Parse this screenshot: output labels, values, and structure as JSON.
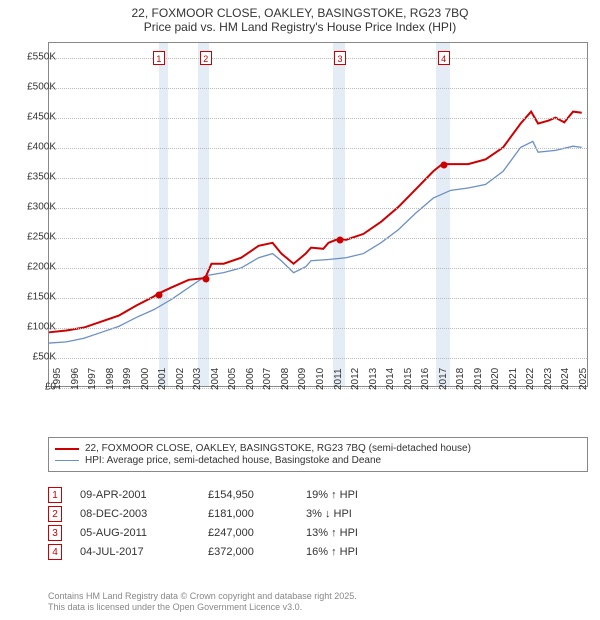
{
  "title": {
    "line1": "22, FOXMOOR CLOSE, OAKLEY, BASINGSTOKE, RG23 7BQ",
    "line2": "Price paid vs. HM Land Registry's House Price Index (HPI)"
  },
  "chart": {
    "type": "line",
    "background_color": "#ffffff",
    "grid_color": "#bbbbbb",
    "band_color": "#e4edf6",
    "border_color": "#888888",
    "x": {
      "min": 1995,
      "max": 2025.8,
      "ticks": [
        1995,
        1996,
        1997,
        1998,
        1999,
        2000,
        2001,
        2002,
        2003,
        2004,
        2005,
        2006,
        2007,
        2008,
        2009,
        2010,
        2011,
        2012,
        2013,
        2014,
        2015,
        2016,
        2017,
        2018,
        2019,
        2020,
        2021,
        2022,
        2023,
        2024,
        2025
      ]
    },
    "y": {
      "min": 0,
      "max": 575000,
      "ticks": [
        0,
        50000,
        100000,
        150000,
        200000,
        250000,
        300000,
        350000,
        400000,
        450000,
        500000,
        550000
      ],
      "labels": [
        "£0",
        "£50K",
        "£100K",
        "£150K",
        "£200K",
        "£250K",
        "£300K",
        "£350K",
        "£400K",
        "£450K",
        "£500K",
        "£550K"
      ]
    },
    "bands": [
      {
        "start": 2001.27,
        "end": 2001.8
      },
      {
        "start": 2003.5,
        "end": 2004.1
      },
      {
        "start": 2011.2,
        "end": 2011.9
      },
      {
        "start": 2017.1,
        "end": 2017.9
      }
    ],
    "series": [
      {
        "name": "price_paid",
        "label": "22, FOXMOOR CLOSE, OAKLEY, BASINGSTOKE, RG23 7BQ (semi-detached house)",
        "color": "#cc0000",
        "width": 2,
        "data": [
          [
            1995,
            90000
          ],
          [
            1996,
            93000
          ],
          [
            1997,
            98000
          ],
          [
            1998,
            108000
          ],
          [
            1999,
            118000
          ],
          [
            2000,
            135000
          ],
          [
            2001,
            150000
          ],
          [
            2001.27,
            154950
          ],
          [
            2002,
            165000
          ],
          [
            2003,
            178000
          ],
          [
            2003.94,
            181000
          ],
          [
            2004.3,
            205000
          ],
          [
            2005,
            205000
          ],
          [
            2006,
            215000
          ],
          [
            2007,
            235000
          ],
          [
            2007.8,
            240000
          ],
          [
            2008.3,
            222000
          ],
          [
            2009,
            205000
          ],
          [
            2009.7,
            222000
          ],
          [
            2010,
            232000
          ],
          [
            2010.7,
            230000
          ],
          [
            2011.0,
            240000
          ],
          [
            2011.6,
            247000
          ],
          [
            2012,
            245000
          ],
          [
            2013,
            255000
          ],
          [
            2014,
            275000
          ],
          [
            2015,
            300000
          ],
          [
            2016,
            330000
          ],
          [
            2017,
            360000
          ],
          [
            2017.51,
            372000
          ],
          [
            2018,
            372000
          ],
          [
            2019,
            372000
          ],
          [
            2020,
            380000
          ],
          [
            2021,
            400000
          ],
          [
            2022,
            440000
          ],
          [
            2022.6,
            460000
          ],
          [
            2023,
            440000
          ],
          [
            2023.6,
            445000
          ],
          [
            2024,
            450000
          ],
          [
            2024.5,
            442000
          ],
          [
            2025,
            460000
          ],
          [
            2025.5,
            458000
          ]
        ]
      },
      {
        "name": "hpi",
        "label": "HPI: Average price, semi-detached house, Basingstoke and Deane",
        "color": "#6b8fc7",
        "width": 1.3,
        "data": [
          [
            1995,
            72000
          ],
          [
            1996,
            74000
          ],
          [
            1997,
            80000
          ],
          [
            1998,
            90000
          ],
          [
            1999,
            100000
          ],
          [
            2000,
            115000
          ],
          [
            2001,
            128000
          ],
          [
            2002,
            145000
          ],
          [
            2003,
            165000
          ],
          [
            2004,
            185000
          ],
          [
            2005,
            190000
          ],
          [
            2006,
            198000
          ],
          [
            2007,
            215000
          ],
          [
            2007.8,
            222000
          ],
          [
            2008.3,
            210000
          ],
          [
            2009,
            190000
          ],
          [
            2009.7,
            200000
          ],
          [
            2010,
            210000
          ],
          [
            2011,
            212000
          ],
          [
            2012,
            215000
          ],
          [
            2013,
            222000
          ],
          [
            2014,
            240000
          ],
          [
            2015,
            262000
          ],
          [
            2016,
            290000
          ],
          [
            2017,
            315000
          ],
          [
            2018,
            328000
          ],
          [
            2019,
            332000
          ],
          [
            2020,
            338000
          ],
          [
            2021,
            360000
          ],
          [
            2022,
            400000
          ],
          [
            2022.7,
            410000
          ],
          [
            2023,
            392000
          ],
          [
            2024,
            395000
          ],
          [
            2025,
            402000
          ],
          [
            2025.5,
            400000
          ]
        ]
      }
    ],
    "sale_markers": [
      {
        "n": "1",
        "x": 2001.27,
        "y": 154950
      },
      {
        "n": "2",
        "x": 2003.94,
        "y": 181000
      },
      {
        "n": "3",
        "x": 2011.6,
        "y": 247000
      },
      {
        "n": "4",
        "x": 2017.51,
        "y": 372000
      }
    ]
  },
  "legend": {
    "items": [
      {
        "color": "#cc0000",
        "width": 2,
        "label": "22, FOXMOOR CLOSE, OAKLEY, BASINGSTOKE, RG23 7BQ (semi-detached house)"
      },
      {
        "color": "#6b8fc7",
        "width": 1.3,
        "label": "HPI: Average price, semi-detached house, Basingstoke and Deane"
      }
    ]
  },
  "sales": [
    {
      "n": "1",
      "date": "09-APR-2001",
      "price": "£154,950",
      "diff": "19% ↑ HPI"
    },
    {
      "n": "2",
      "date": "08-DEC-2003",
      "price": "£181,000",
      "diff": "3% ↓ HPI"
    },
    {
      "n": "3",
      "date": "05-AUG-2011",
      "price": "£247,000",
      "diff": "13% ↑ HPI"
    },
    {
      "n": "4",
      "date": "04-JUL-2017",
      "price": "£372,000",
      "diff": "16% ↑ HPI"
    }
  ],
  "footer": {
    "line1": "Contains HM Land Registry data © Crown copyright and database right 2025.",
    "line2": "This data is licensed under the Open Government Licence v3.0."
  }
}
